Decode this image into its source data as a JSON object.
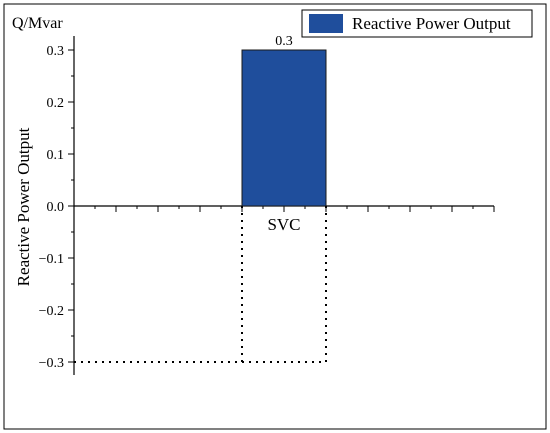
{
  "chart_data": {
    "type": "bar",
    "title": "",
    "ylabel": "Reactive Power Output",
    "yunit": "Q/Mvar",
    "categories": [
      "SVC"
    ],
    "series": [
      {
        "name": "Reactive Power Output",
        "values": [
          0.3
        ],
        "color": "#1f4e9c"
      }
    ],
    "data_labels": [
      "0.3"
    ],
    "ylim": [
      -0.33,
      0.33
    ],
    "yticks": [
      -0.3,
      -0.2,
      -0.1,
      0.0,
      0.1,
      0.2,
      0.3
    ],
    "ytick_labels": [
      "−0.3",
      "−0.2",
      "−0.1",
      "0.0",
      "0.1",
      "0.2",
      "0.3"
    ],
    "reference_lines": [
      {
        "y": -0.3,
        "style": "dotted"
      }
    ],
    "grid": false,
    "legend_position": "top-right"
  }
}
